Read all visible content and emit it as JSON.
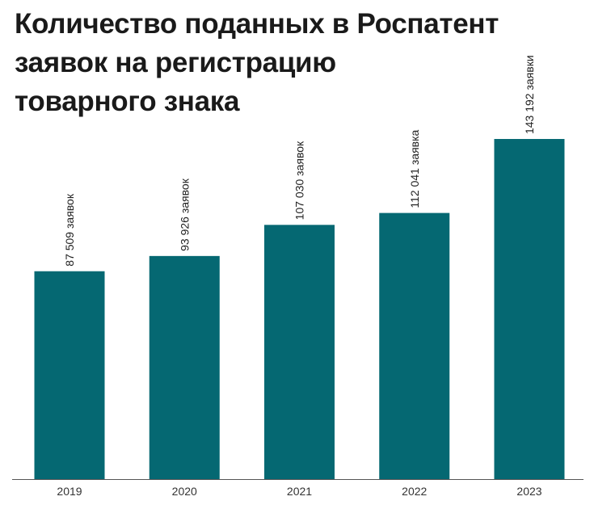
{
  "title_lines": [
    "Количество поданных в Роспатент",
    "заявок на регистрацию",
    "товарного знака"
  ],
  "colors": {
    "bar": "#056872",
    "axis": "#555555"
  },
  "chart_data": {
    "type": "bar",
    "title": "Количество поданных в Роспатент заявок на регистрацию товарного знака",
    "categories": [
      "2019",
      "2020",
      "2021",
      "2022",
      "2023"
    ],
    "values": [
      87509,
      93926,
      107030,
      112041,
      143192
    ],
    "data_labels": [
      "87 509 заявок",
      "93 926 заявок",
      "107 030 заявок",
      "112 041 заявка",
      "143 192 заявки"
    ],
    "xlabel": "",
    "ylabel": "",
    "ylim": [
      0,
      200000
    ],
    "grid": false,
    "legend": "none"
  }
}
